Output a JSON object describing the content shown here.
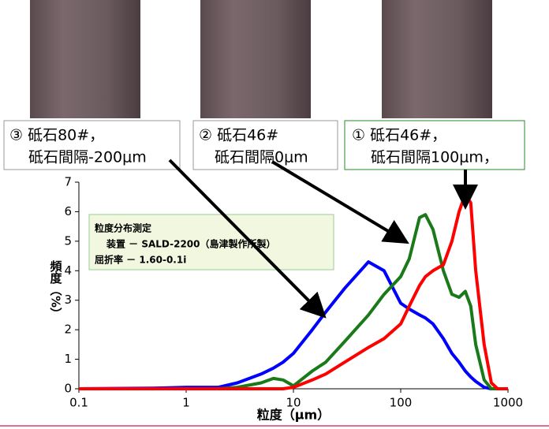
{
  "chart_data": {
    "type": "line",
    "xlabel": "粒度（μm）",
    "ylabel": "頻度（%）",
    "x": [
      0.1,
      0.5,
      1,
      2,
      3,
      5,
      6.5,
      8,
      10,
      15,
      20,
      30,
      50,
      70,
      100,
      120,
      150,
      170,
      200,
      250,
      300,
      350,
      400,
      450,
      500,
      600,
      700,
      800,
      1000
    ],
    "series": [
      {
        "color": "#0000ff",
        "values": [
          0,
          0.02,
          0.05,
          0.05,
          0.2,
          0.5,
          0.7,
          0.9,
          1.2,
          2.0,
          2.6,
          3.4,
          4.3,
          4.0,
          2.9,
          2.7,
          2.5,
          2.4,
          2.2,
          1.7,
          1.2,
          0.9,
          0.6,
          0.4,
          0.25,
          0.05,
          0,
          0,
          0
        ]
      },
      {
        "color": "#1a7a1a",
        "values": [
          0,
          0,
          0,
          0,
          0.05,
          0.2,
          0.35,
          0.3,
          0.1,
          0.6,
          0.9,
          1.6,
          2.5,
          3.2,
          3.8,
          4.4,
          5.8,
          5.9,
          5.4,
          4.0,
          3.2,
          3.1,
          3.3,
          2.8,
          1.5,
          0.3,
          0,
          0,
          0
        ]
      },
      {
        "color": "#ff0000",
        "values": [
          0,
          0,
          0,
          0,
          0,
          0,
          0,
          0,
          0.05,
          0.3,
          0.5,
          0.9,
          1.4,
          1.7,
          2.2,
          2.8,
          3.5,
          3.8,
          4.0,
          4.2,
          5.0,
          6.0,
          6.6,
          6.3,
          4.0,
          1.5,
          0.2,
          0,
          0
        ]
      }
    ],
    "xscale": "log",
    "xlim": [
      0.1,
      1000
    ],
    "xticks": [
      0.1,
      1,
      10,
      100,
      1000
    ],
    "ylim": [
      0,
      7
    ],
    "yticks": [
      0,
      1,
      2,
      3,
      4,
      5,
      6,
      7
    ],
    "annotations": [
      [
        "③ 砥石80#，",
        "砥石間隔-200μm"
      ],
      [
        "② 砥石46#",
        "砥石間隔0μm"
      ],
      [
        "① 砥石46#，",
        "砥石間隔100μm，"
      ]
    ],
    "note": [
      "粒度分布測定",
      "装置 － SALD-2200（島津製作所製）",
      "屈折率 － 1.60-0.1i"
    ]
  }
}
